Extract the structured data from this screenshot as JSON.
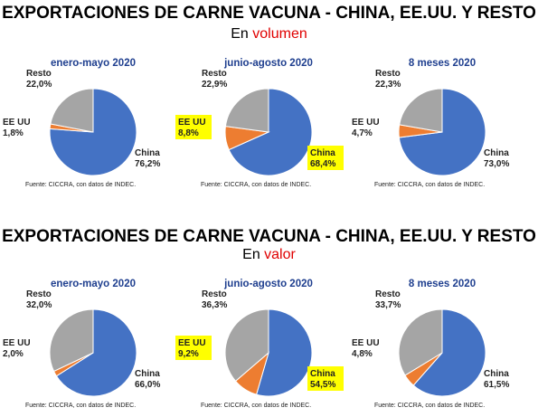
{
  "sections": [
    {
      "title": "EXPORTACIONES DE CARNE VACUNA - CHINA, EE.UU. Y RESTO",
      "subtitle_prefix": "En ",
      "subtitle_highlight": "volumen"
    },
    {
      "title": "EXPORTACIONES DE CARNE VACUNA - CHINA, EE.UU. Y RESTO",
      "subtitle_prefix": "En ",
      "subtitle_highlight": "valor"
    }
  ],
  "colors": {
    "china": "#4472c4",
    "eeuu": "#ed7d31",
    "resto": "#a5a5a5",
    "panel_title": "#1f3f8f",
    "highlight_text": "#e00000",
    "highlight_box": "#ffff00"
  },
  "chart_data": [
    {
      "type": "pie",
      "group": "volumen",
      "title": "enero-mayo 2020",
      "source": "Fuente: CICCRA, con datos de INDEC.",
      "slices": [
        {
          "name": "China",
          "value": 76.2,
          "label": "76,2%"
        },
        {
          "name": "EE UU",
          "value": 1.8,
          "label": "1,8%"
        },
        {
          "name": "Resto",
          "value": 22.0,
          "label": "22,0%"
        }
      ]
    },
    {
      "type": "pie",
      "group": "volumen",
      "title": "junio-agosto 2020",
      "source": "Fuente: CICCRA, con datos de INDEC.",
      "highlight": [
        "China",
        "EE UU"
      ],
      "slices": [
        {
          "name": "China",
          "value": 68.4,
          "label": "68,4%"
        },
        {
          "name": "EE UU",
          "value": 8.8,
          "label": "8,8%"
        },
        {
          "name": "Resto",
          "value": 22.9,
          "label": "22,9%"
        }
      ]
    },
    {
      "type": "pie",
      "group": "volumen",
      "title": "8 meses 2020",
      "source": "Fuente: CICCRA, con datos de INDEC.",
      "slices": [
        {
          "name": "China",
          "value": 73.0,
          "label": "73,0%"
        },
        {
          "name": "EE UU",
          "value": 4.7,
          "label": "4,7%"
        },
        {
          "name": "Resto",
          "value": 22.3,
          "label": "22,3%"
        }
      ]
    },
    {
      "type": "pie",
      "group": "valor",
      "title": "enero-mayo 2020",
      "source": "Fuente: CICCRA, con datos de INDEC.",
      "slices": [
        {
          "name": "China",
          "value": 66.0,
          "label": "66,0%"
        },
        {
          "name": "EE UU",
          "value": 2.0,
          "label": "2,0%"
        },
        {
          "name": "Resto",
          "value": 32.0,
          "label": "32,0%"
        }
      ]
    },
    {
      "type": "pie",
      "group": "valor",
      "title": "junio-agosto 2020",
      "source": "Fuente: CICCRA, con datos de INDEC.",
      "highlight": [
        "China",
        "EE UU"
      ],
      "slices": [
        {
          "name": "China",
          "value": 54.5,
          "label": "54,5%"
        },
        {
          "name": "EE UU",
          "value": 9.2,
          "label": "9,2%"
        },
        {
          "name": "Resto",
          "value": 36.3,
          "label": "36,3%"
        }
      ]
    },
    {
      "type": "pie",
      "group": "valor",
      "title": "8 meses 2020",
      "source": "Fuente: CICCRA, con datos de INDEC.",
      "slices": [
        {
          "name": "China",
          "value": 61.5,
          "label": "61,5%"
        },
        {
          "name": "EE UU",
          "value": 4.8,
          "label": "4,8%"
        },
        {
          "name": "Resto",
          "value": 33.7,
          "label": "33,7%"
        }
      ]
    }
  ]
}
